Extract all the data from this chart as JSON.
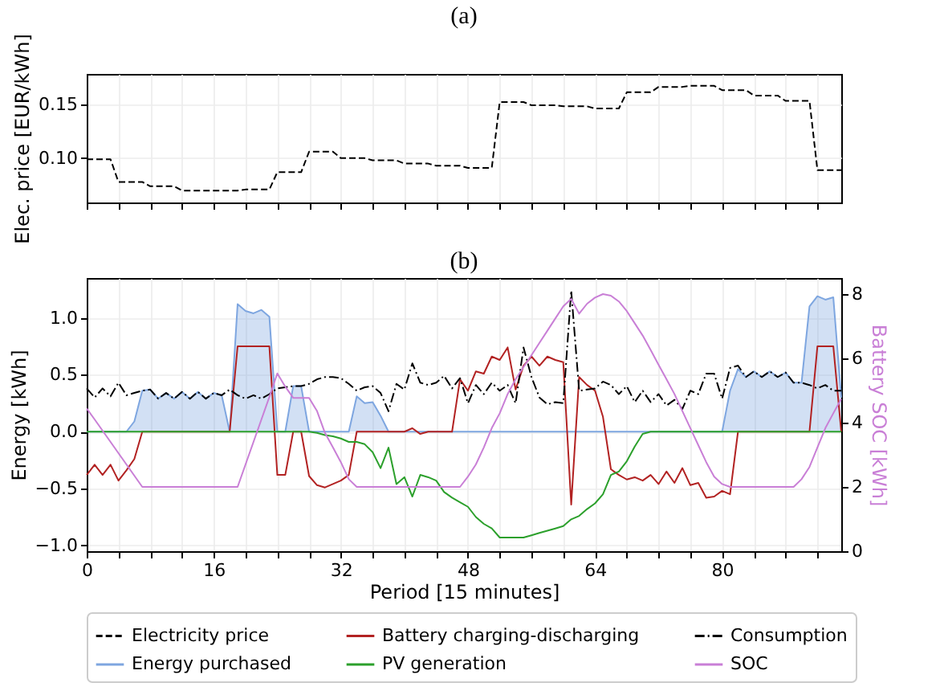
{
  "chart_data": [
    {
      "type": "line",
      "title": "(a)",
      "ylabel": "Elec. price [EUR/kWh]",
      "xlim": [
        0,
        95
      ],
      "ylim": [
        0.059,
        0.178
      ],
      "yticks": [
        {
          "value": 0.1,
          "label": "0.10"
        },
        0.15
      ],
      "xticks": [
        0,
        {
          "value": 4,
          "label": null
        },
        {
          "value": 8,
          "label": null
        },
        {
          "value": 12,
          "label": null
        },
        16,
        {
          "value": 20,
          "label": null
        },
        {
          "value": 24,
          "label": null
        },
        {
          "value": 28,
          "label": null
        },
        32,
        {
          "value": 36,
          "label": null
        },
        {
          "value": 40,
          "label": null
        },
        {
          "value": 44,
          "label": null
        },
        48,
        {
          "value": 52,
          "label": null
        },
        {
          "value": 56,
          "label": null
        },
        {
          "value": 60,
          "label": null
        },
        64,
        {
          "value": 68,
          "label": null
        },
        {
          "value": 72,
          "label": null
        },
        {
          "value": 76,
          "label": null
        },
        80,
        {
          "value": 84,
          "label": null
        },
        {
          "value": 88,
          "label": null
        },
        {
          "value": 92,
          "label": null
        }
      ],
      "tick_labels": "y",
      "grid": true,
      "legend": "bottom",
      "x": [
        0,
        1,
        2,
        3,
        4,
        5,
        6,
        7,
        8,
        9,
        10,
        11,
        12,
        13,
        14,
        15,
        16,
        17,
        18,
        19,
        20,
        21,
        22,
        23,
        24,
        25,
        26,
        27,
        28,
        29,
        30,
        31,
        32,
        33,
        34,
        35,
        36,
        37,
        38,
        39,
        40,
        41,
        42,
        43,
        44,
        45,
        46,
        47,
        48,
        49,
        50,
        51,
        52,
        53,
        54,
        55,
        56,
        57,
        58,
        59,
        60,
        61,
        62,
        63,
        64,
        65,
        66,
        67,
        68,
        69,
        70,
        71,
        72,
        73,
        74,
        75,
        76,
        77,
        78,
        79,
        80,
        81,
        82,
        83,
        84,
        85,
        86,
        87,
        88,
        89,
        90,
        91,
        92,
        93,
        94,
        95
      ],
      "series": [
        {
          "name": "Electricity price",
          "color": "#000000",
          "line_style": "dashed",
          "values": [
            0.099,
            0.099,
            0.099,
            0.099,
            0.078,
            0.078,
            0.078,
            0.078,
            0.074,
            0.074,
            0.074,
            0.074,
            0.07,
            0.07,
            0.07,
            0.07,
            0.07,
            0.07,
            0.07,
            0.07,
            0.071,
            0.071,
            0.071,
            0.071,
            0.087,
            0.087,
            0.087,
            0.087,
            0.106,
            0.106,
            0.106,
            0.106,
            0.1,
            0.1,
            0.1,
            0.1,
            0.098,
            0.098,
            0.098,
            0.098,
            0.095,
            0.095,
            0.095,
            0.095,
            0.093,
            0.093,
            0.093,
            0.093,
            0.091,
            0.091,
            0.091,
            0.091,
            0.152,
            0.152,
            0.152,
            0.152,
            0.149,
            0.149,
            0.149,
            0.149,
            0.148,
            0.148,
            0.148,
            0.148,
            0.146,
            0.146,
            0.146,
            0.146,
            0.161,
            0.161,
            0.161,
            0.161,
            0.166,
            0.166,
            0.166,
            0.166,
            0.167,
            0.167,
            0.167,
            0.167,
            0.163,
            0.163,
            0.163,
            0.163,
            0.158,
            0.158,
            0.158,
            0.158,
            0.153,
            0.153,
            0.153,
            0.153,
            0.089,
            0.089,
            0.089,
            0.089
          ]
        }
      ]
    },
    {
      "type": "line",
      "title": "(b)",
      "xlabel": "Period [15 minutes]",
      "ylabel": "Energy [kWh]",
      "y2label": "Battery SOC [kWh]",
      "xlim": [
        0,
        95
      ],
      "ylim": [
        -1.05,
        1.35
      ],
      "yticks": [
        {
          "value": -1,
          "label": "−1.0"
        },
        {
          "value": -0.5,
          "label": "−0.5"
        },
        {
          "value": 0,
          "label": "0.0"
        },
        {
          "value": 0.5,
          "label": "0.5"
        },
        {
          "value": 1,
          "label": "1.0"
        }
      ],
      "y2lim": [
        0,
        8.5
      ],
      "y2ticks": [
        0,
        2,
        4,
        6,
        8
      ],
      "xticks": [
        0,
        {
          "value": 4,
          "label": null
        },
        {
          "value": 8,
          "label": null
        },
        {
          "value": 12,
          "label": null
        },
        16,
        {
          "value": 20,
          "label": null
        },
        {
          "value": 24,
          "label": null
        },
        {
          "value": 28,
          "label": null
        },
        32,
        {
          "value": 36,
          "label": null
        },
        {
          "value": 40,
          "label": null
        },
        {
          "value": 44,
          "label": null
        },
        48,
        {
          "value": 52,
          "label": null
        },
        {
          "value": 56,
          "label": null
        },
        {
          "value": 60,
          "label": null
        },
        64,
        {
          "value": 68,
          "label": null
        },
        {
          "value": 72,
          "label": null
        },
        {
          "value": 76,
          "label": null
        },
        80,
        {
          "value": 84,
          "label": null
        },
        {
          "value": 88,
          "label": null
        },
        {
          "value": 92,
          "label": null
        }
      ],
      "grid": true,
      "legend": "bottom",
      "x": [
        0,
        1,
        2,
        3,
        4,
        5,
        6,
        7,
        8,
        9,
        10,
        11,
        12,
        13,
        14,
        15,
        16,
        17,
        18,
        19,
        20,
        21,
        22,
        23,
        24,
        25,
        26,
        27,
        28,
        29,
        30,
        31,
        32,
        33,
        34,
        35,
        36,
        37,
        38,
        39,
        40,
        41,
        42,
        43,
        44,
        45,
        46,
        47,
        48,
        49,
        50,
        51,
        52,
        53,
        54,
        55,
        56,
        57,
        58,
        59,
        60,
        61,
        62,
        63,
        64,
        65,
        66,
        67,
        68,
        69,
        70,
        71,
        72,
        73,
        74,
        75,
        76,
        77,
        78,
        79,
        80,
        81,
        82,
        83,
        84,
        85,
        86,
        87,
        88,
        89,
        90,
        91,
        92,
        93,
        94,
        95
      ],
      "series": [
        {
          "name": "Battery charging-discharging",
          "color": "#b22222",
          "line_style": "solid",
          "values": [
            -0.38,
            -0.29,
            -0.38,
            -0.29,
            -0.43,
            -0.34,
            -0.24,
            0,
            0,
            0,
            0,
            0,
            0,
            0,
            0,
            0,
            0,
            0,
            0,
            0.75,
            0.75,
            0.75,
            0.75,
            0.75,
            -0.38,
            -0.38,
            0,
            0,
            -0.39,
            -0.47,
            -0.49,
            -0.46,
            -0.43,
            -0.38,
            0,
            0,
            0,
            0,
            0,
            0,
            0,
            0.03,
            -0.02,
            0,
            0,
            0,
            0,
            0.46,
            0.36,
            0.53,
            0.51,
            0.66,
            0.63,
            0.74,
            0.37,
            0.58,
            0.66,
            0.58,
            0.66,
            0.63,
            0.61,
            -0.64,
            0.48,
            0.41,
            0.36,
            0.13,
            -0.33,
            -0.38,
            -0.42,
            -0.4,
            -0.43,
            -0.38,
            -0.46,
            -0.35,
            -0.45,
            -0.32,
            -0.47,
            -0.45,
            -0.58,
            -0.57,
            -0.52,
            -0.55,
            0,
            0,
            0,
            0,
            0,
            0,
            0,
            0,
            0,
            0,
            0.75,
            0.75,
            0.75,
            0
          ]
        },
        {
          "name": "Consumption",
          "color": "#000000",
          "line_style": "dashdot",
          "values": [
            0.38,
            0.3,
            0.38,
            0.31,
            0.43,
            0.32,
            0.34,
            0.36,
            0.37,
            0.29,
            0.34,
            0.29,
            0.35,
            0.29,
            0.35,
            0.29,
            0.34,
            0.32,
            0.37,
            0.32,
            0.29,
            0.32,
            0.29,
            0.33,
            0.38,
            0.39,
            0.4,
            0.4,
            0.42,
            0.46,
            0.48,
            0.48,
            0.47,
            0.42,
            0.36,
            0.39,
            0.4,
            0.34,
            0.18,
            0.42,
            0.37,
            0.6,
            0.43,
            0.41,
            0.43,
            0.49,
            0.38,
            0.47,
            0.25,
            0.41,
            0.33,
            0.43,
            0.36,
            0.41,
            0.25,
            0.74,
            0.48,
            0.3,
            0.24,
            0.26,
            0.25,
            1.24,
            0.36,
            0.37,
            0.38,
            0.44,
            0.41,
            0.33,
            0.4,
            0.26,
            0.36,
            0.26,
            0.33,
            0.23,
            0.28,
            0.2,
            0.36,
            0.33,
            0.51,
            0.51,
            0.29,
            0.56,
            0.58,
            0.48,
            0.53,
            0.48,
            0.53,
            0.48,
            0.52,
            0.43,
            0.43,
            0.41,
            0.38,
            0.41,
            0.36,
            0.36
          ]
        },
        {
          "name": "Energy purchased",
          "type": "area",
          "color": "#7ea6e0",
          "line_style": "solid",
          "values": [
            0,
            0,
            0,
            0,
            0,
            0,
            0.09,
            0.36,
            0.37,
            0.29,
            0.34,
            0.29,
            0.35,
            0.29,
            0.35,
            0.29,
            0.34,
            0.32,
            0,
            1.12,
            1.06,
            1.04,
            1.07,
            1.01,
            0,
            0,
            0.4,
            0.4,
            0,
            0,
            0,
            0,
            0,
            0,
            0.31,
            0.25,
            0.26,
            0.14,
            0,
            0,
            0,
            0,
            0,
            0,
            0,
            0,
            0,
            0,
            0,
            0,
            0,
            0,
            0,
            0,
            0,
            0,
            0,
            0,
            0,
            0,
            0,
            0,
            0,
            0,
            0,
            0,
            0,
            0,
            0,
            0,
            0,
            0,
            0,
            0,
            0,
            0,
            0,
            0,
            0,
            0,
            0,
            0.36,
            0.55,
            0.48,
            0.53,
            0.48,
            0.53,
            0.48,
            0.52,
            0.43,
            0.43,
            1.1,
            1.19,
            1.16,
            1.18,
            0.3
          ]
        },
        {
          "name": "PV generation",
          "color": "#2ca02c",
          "line_style": "solid",
          "values": [
            0,
            0,
            0,
            0,
            0,
            0,
            0,
            0,
            0,
            0,
            0,
            0,
            0,
            0,
            0,
            0,
            0,
            0,
            0,
            0,
            0,
            0,
            0,
            0,
            0,
            0,
            0,
            0,
            0,
            -0.01,
            -0.03,
            -0.04,
            -0.06,
            -0.09,
            -0.09,
            -0.11,
            -0.18,
            -0.32,
            -0.14,
            -0.46,
            -0.4,
            -0.57,
            -0.38,
            -0.4,
            -0.43,
            -0.53,
            -0.58,
            -0.62,
            -0.66,
            -0.75,
            -0.81,
            -0.85,
            -0.93,
            -0.93,
            -0.93,
            -0.93,
            -0.91,
            -0.89,
            -0.87,
            -0.85,
            -0.83,
            -0.77,
            -0.74,
            -0.68,
            -0.63,
            -0.55,
            -0.38,
            -0.35,
            -0.26,
            -0.13,
            -0.02,
            0,
            0,
            0,
            0,
            0,
            0,
            0,
            0,
            0,
            0,
            0,
            0,
            0,
            0,
            0,
            0,
            0,
            0,
            0,
            0,
            0,
            0,
            0,
            0,
            0
          ]
        },
        {
          "name": "SOC",
          "color": "#c97fd6",
          "line_style": "solid",
          "axis": "y2",
          "values": [
            4.44,
            4.1,
            3.75,
            3.4,
            3.05,
            2.7,
            2.35,
            2,
            2,
            2,
            2,
            2,
            2,
            2,
            2,
            2,
            2,
            2,
            2,
            2,
            2.7,
            3.4,
            4.1,
            4.8,
            5.53,
            5.12,
            4.77,
            4.77,
            4.77,
            4.36,
            3.68,
            3.23,
            2.77,
            2.24,
            2,
            2,
            2,
            2,
            2,
            2,
            2,
            2,
            2,
            2,
            2,
            2,
            2,
            2,
            2.32,
            2.7,
            3.23,
            3.83,
            4.29,
            4.89,
            5.35,
            5.73,
            6.1,
            6.48,
            6.86,
            7.24,
            7.62,
            7.85,
            7.39,
            7.7,
            7.89,
            8,
            7.95,
            7.77,
            7.47,
            7.09,
            6.71,
            6.26,
            5.8,
            5.35,
            4.89,
            4.36,
            3.83,
            3.3,
            2.77,
            2.32,
            2.09,
            2,
            2,
            2,
            2,
            2,
            2,
            2,
            2,
            2,
            2.24,
            2.62,
            3.23,
            3.83,
            4.29,
            4.74
          ]
        }
      ]
    }
  ]
}
